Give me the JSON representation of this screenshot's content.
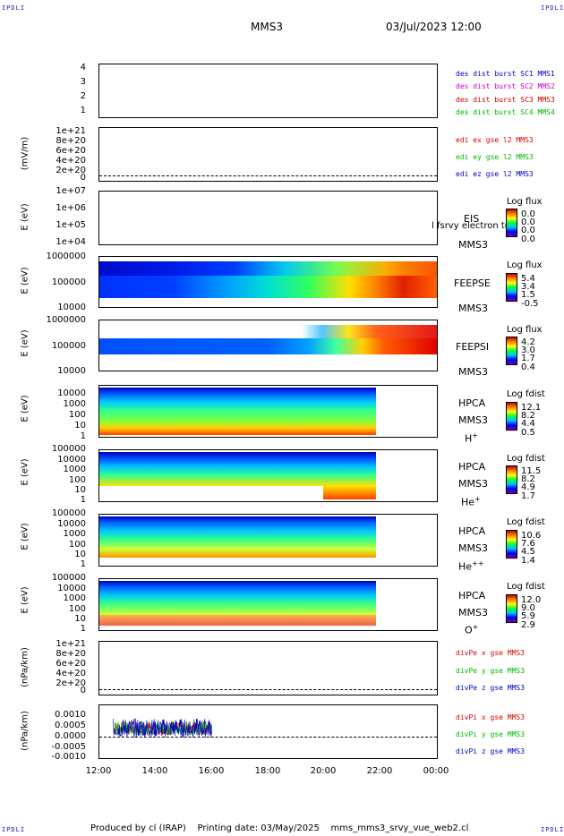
{
  "corners": {
    "tl": "IPDLI",
    "tr": "IPDLI",
    "bl": "IPDLI",
    "br": "IPDLI"
  },
  "header": {
    "mission": "MMS3",
    "datetime": "03/Jul/2023 12:00"
  },
  "colors": {
    "mms1": "#0000cc",
    "mms2": "#cc00cc",
    "mms3": "#cc0000",
    "mms4": "#00bb00",
    "x": "#dd0000",
    "y": "#00bb00",
    "z": "#0000cc"
  },
  "panels": {
    "p1": {
      "yticks": [
        "4",
        "3",
        "2",
        "1"
      ],
      "legend": [
        "des dist burst SC1 MMS1",
        "des dist burst SC2 MMS2",
        "des dist burst SC3 MMS3",
        "des dist burst SC4 MMS4"
      ]
    },
    "p2": {
      "ylabel": "(mV/m)",
      "yticks": [
        "1e+21",
        "8e+20",
        "6e+20",
        "4e+20",
        "2e+20",
        "0"
      ],
      "legend": [
        "edi ex gse l2 MMS3",
        "edi ey gse l2 MMS3",
        "edi ez gse l2 MMS3"
      ]
    },
    "p3": {
      "ylabel": "E (eV)",
      "yticks": [
        "1e+07",
        "1e+06",
        "1e+05",
        "1e+04"
      ],
      "inst": "EIS",
      "overlay": "l fsrvy electron to",
      "sc": "MMS3",
      "cb_title": "Log flux",
      "cb_vals": [
        "0.0",
        "0.0",
        "0.0",
        "0.0"
      ]
    },
    "p4": {
      "ylabel": "E (eV)",
      "yticks": [
        "1000000",
        "100000",
        "10000"
      ],
      "inst": "FEEPSE",
      "sc": "MMS3",
      "cb_title": "Log flux",
      "cb_vals": [
        "5.4",
        "3.4",
        "1.5",
        "-0.5"
      ]
    },
    "p5": {
      "ylabel": "E (eV)",
      "yticks": [
        "1000000",
        "100000",
        "10000"
      ],
      "inst": "FEEPSI",
      "sc": "MMS3",
      "cb_title": "Log flux",
      "cb_vals": [
        "4.2",
        "3.0",
        "1.7",
        "0.4"
      ]
    },
    "p6": {
      "ylabel": "E (eV)",
      "yticks": [
        "10000",
        "1000",
        "100",
        "10",
        "1"
      ],
      "inst": "HPCA",
      "sc": "MMS3",
      "species": "H",
      "charge": "+",
      "cb_title": "Log fdist",
      "cb_vals": [
        "12.1",
        "8.2",
        "4.4",
        "0.5"
      ]
    },
    "p7": {
      "ylabel": "E (eV)",
      "yticks": [
        "100000",
        "10000",
        "1000",
        "100",
        "10",
        "1"
      ],
      "inst": "HPCA",
      "sc": "MMS3",
      "species": "He",
      "charge": "+",
      "cb_title": "Log fdist",
      "cb_vals": [
        "11.5",
        "8.2",
        "4.9",
        "1.7"
      ]
    },
    "p8": {
      "ylabel": "E (eV)",
      "yticks": [
        "100000",
        "10000",
        "1000",
        "100",
        "10",
        "1"
      ],
      "inst": "HPCA",
      "sc": "MMS3",
      "species": "He",
      "charge": "++",
      "cb_title": "Log fdist",
      "cb_vals": [
        "10.6",
        "7.6",
        "4.5",
        "1.4"
      ]
    },
    "p9": {
      "ylabel": "E (eV)",
      "yticks": [
        "100000",
        "10000",
        "1000",
        "100",
        "10",
        "1"
      ],
      "inst": "HPCA",
      "sc": "MMS3",
      "species": "O",
      "charge": "+",
      "cb_title": "Log fdist",
      "cb_vals": [
        "12.0",
        "9.0",
        "5.9",
        "2.9"
      ]
    },
    "p10": {
      "ylabel": "(nPa/km)",
      "yticks": [
        "1e+21",
        "8e+20",
        "6e+20",
        "4e+20",
        "2e+20",
        "0"
      ],
      "legend": [
        "divPe x gse MMS3",
        "divPe y gse MMS3",
        "divPe z gse MMS3"
      ]
    },
    "p11": {
      "ylabel": "(nPa/km)",
      "yticks": [
        "0.0010",
        "0.0005",
        "0.0000",
        "-0.0005",
        "-0.0010"
      ],
      "legend": [
        "divPi x gse MMS3",
        "divPi y gse MMS3",
        "divPi z gse MMS3"
      ]
    }
  },
  "chart_data": {
    "type": "line",
    "xlabel": "",
    "x_ticks": [
      "12:00",
      "14:00",
      "16:00",
      "18:00",
      "20:00",
      "22:00",
      "00:00"
    ],
    "x_range": [
      "12:00",
      "00:00"
    ],
    "divPi": {
      "time_range": [
        "12:30",
        "16:00"
      ],
      "ylim": [
        -0.0012,
        0.0012
      ],
      "approx_amplitude": 0.0004,
      "series": [
        "divPi x gse MMS3",
        "divPi y gse MMS3",
        "divPi z gse MMS3"
      ]
    },
    "hpca_data_end": "22:00"
  },
  "footer": {
    "text": "Produced by cl (IRAP)    Printing date: 03/May/2025    mms_mms3_srvy_vue_web2.cl"
  }
}
